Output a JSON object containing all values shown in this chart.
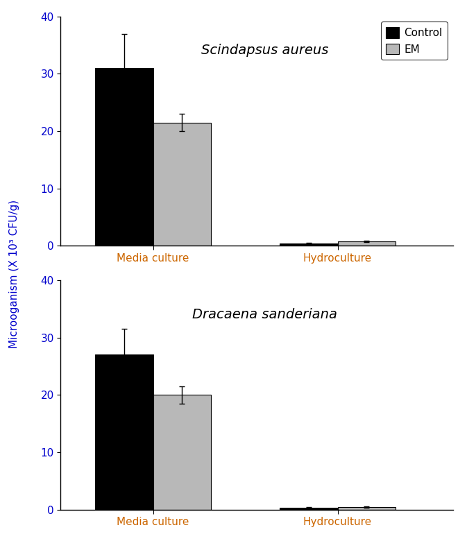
{
  "subplot1_title": "Scindapsus aureus",
  "subplot2_title": "Dracaena sanderiana",
  "categories": [
    "Media culture",
    "Hydroculture"
  ],
  "ylabel": "Microoganism (X 10³ CFU/g)",
  "legend_labels": [
    "Control",
    "EM"
  ],
  "bar_colors": [
    "#000000",
    "#b8b8b8"
  ],
  "bar_edgecolor": "#000000",
  "subplot1_control_values": [
    31.0,
    0.4
  ],
  "subplot1_em_values": [
    21.5,
    0.8
  ],
  "subplot1_control_errors": [
    6.0,
    0.12
  ],
  "subplot1_em_errors": [
    1.5,
    0.15
  ],
  "subplot2_control_values": [
    27.0,
    0.3
  ],
  "subplot2_em_values": [
    20.0,
    0.5
  ],
  "subplot2_control_errors": [
    4.5,
    0.1
  ],
  "subplot2_em_errors": [
    1.5,
    0.12
  ],
  "ylim": [
    0,
    40
  ],
  "yticks": [
    0,
    10,
    20,
    30,
    40
  ],
  "bar_width": 0.25,
  "title_fontsize": 14,
  "label_fontsize": 11,
  "tick_fontsize": 11,
  "legend_fontsize": 11,
  "xlabel_color": "#cc6600",
  "ylabel_color": "#0000cc",
  "tick_color_y": "#0000cc",
  "tick_color_x": "#cc6600",
  "spine_color": "#000000",
  "title_text_color": "#000000",
  "x_positions": [
    0.3,
    1.1
  ],
  "xlim": [
    -0.1,
    1.6
  ]
}
